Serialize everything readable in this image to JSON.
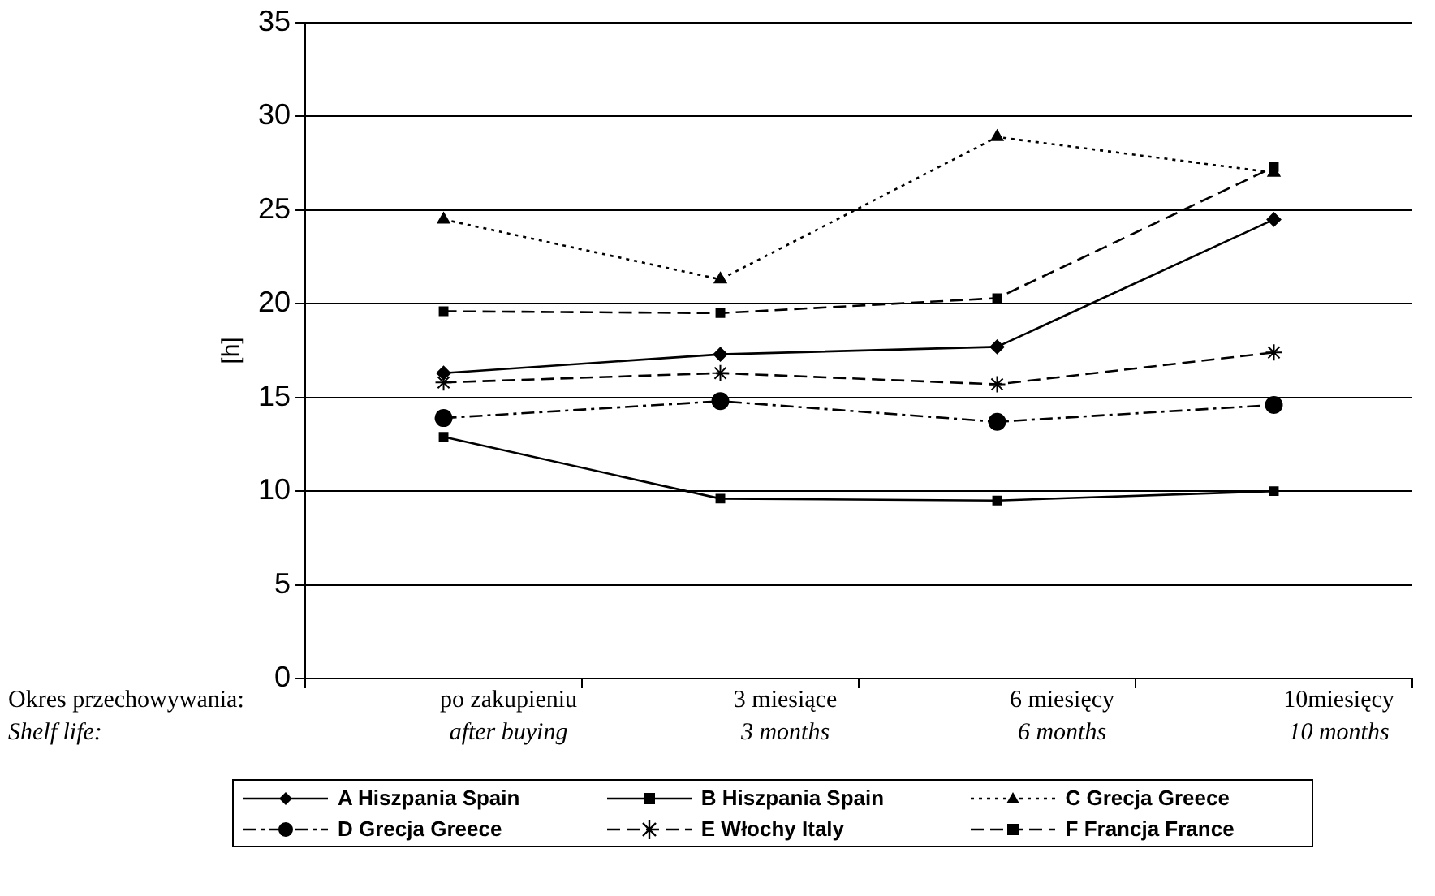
{
  "chart_data": {
    "type": "line",
    "ylabel": "[h]",
    "xlabel": "Okres przechowywania:\nShelf life:",
    "categories": [
      "po zakupieniu\nafter buying",
      "3 miesiące\n3 months",
      "6 miesięcy\n6 months",
      "10miesięcy\n10 months"
    ],
    "ylim": [
      0,
      35
    ],
    "yticks": [
      0,
      5,
      10,
      15,
      20,
      25,
      30,
      35
    ],
    "grid": "y",
    "legend": "bottom",
    "series": [
      {
        "name": "A Hiszpania  Spain",
        "color": "#000000",
        "marker": "diamond",
        "line_style": "solid",
        "values": [
          16.3,
          17.3,
          17.7,
          24.5
        ]
      },
      {
        "name": "B Hiszpania  Spain",
        "color": "#000000",
        "marker": "square",
        "line_style": "solid",
        "values": [
          12.9,
          9.6,
          9.5,
          10.0
        ]
      },
      {
        "name": "C Grecja  Greece",
        "color": "#000000",
        "marker": "triangle",
        "line_style": "dotted",
        "values": [
          24.5,
          21.3,
          28.9,
          27.0
        ]
      },
      {
        "name": "D Grecja  Greece",
        "color": "#000000",
        "marker": "circle",
        "line_style": "dashdot",
        "values": [
          13.9,
          14.8,
          13.7,
          14.6
        ]
      },
      {
        "name": "E Włochy Italy",
        "color": "#000000",
        "marker": "cross",
        "line_style": "dashed",
        "values": [
          15.8,
          16.3,
          15.7,
          17.4
        ]
      },
      {
        "name": "F Francja France",
        "color": "#000000",
        "marker": "square",
        "line_style": "dashed",
        "values": [
          19.6,
          19.5,
          20.3,
          27.3
        ]
      }
    ]
  }
}
